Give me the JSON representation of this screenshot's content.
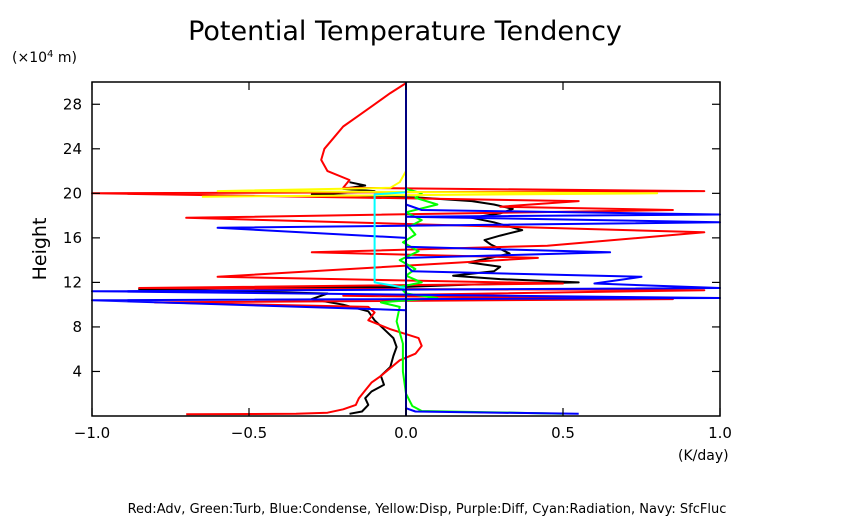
{
  "chart_data": {
    "type": "line",
    "title": "Potential Temperature Tendency",
    "xlabel": "",
    "x_unit": "(K/day)",
    "ylabel": "Height",
    "y_unit_prefix": "(×10",
    "y_unit_exp": "4",
    "y_unit_suffix": " m)",
    "xlim": [
      -1.0,
      1.0
    ],
    "ylim": [
      0,
      30
    ],
    "x_ticks": [
      -1.0,
      -0.5,
      0.0,
      0.5,
      1.0
    ],
    "x_tick_labels": [
      "−1.0",
      "−0.5",
      "0.0",
      "0.5",
      "1.0"
    ],
    "y_ticks": [
      4,
      8,
      12,
      16,
      20,
      24,
      28
    ],
    "y_tick_labels": [
      "4",
      "8",
      "12",
      "16",
      "20",
      "24",
      "28"
    ],
    "legend_text": "Red:Adv, Green:Turb, Blue:Condense, Yellow:Disp, Purple:Diff, Cyan:Radiation, Navy: SfcFluc",
    "series": [
      {
        "color": "#000000",
        "points": [
          [
            -0.18,
            0.2
          ],
          [
            -0.14,
            0.4
          ],
          [
            -0.12,
            1.0
          ],
          [
            -0.13,
            1.6
          ],
          [
            -0.11,
            2.2
          ],
          [
            -0.07,
            2.8
          ],
          [
            -0.08,
            3.6
          ],
          [
            -0.05,
            4.4
          ],
          [
            -0.04,
            5.4
          ],
          [
            -0.03,
            6.2
          ],
          [
            -0.04,
            7.0
          ],
          [
            -0.07,
            7.8
          ],
          [
            -0.1,
            8.6
          ],
          [
            -0.12,
            9.4
          ],
          [
            -0.2,
            10.0
          ],
          [
            -0.3,
            10.5
          ],
          [
            -0.25,
            11.0
          ],
          [
            -0.85,
            11.4
          ],
          [
            0.0,
            11.6
          ],
          [
            0.2,
            11.8
          ],
          [
            0.55,
            12.0
          ],
          [
            0.3,
            12.3
          ],
          [
            0.15,
            12.6
          ],
          [
            0.28,
            13.0
          ],
          [
            0.3,
            13.4
          ],
          [
            0.2,
            13.8
          ],
          [
            0.27,
            14.2
          ],
          [
            0.33,
            14.6
          ],
          [
            0.3,
            15.0
          ],
          [
            0.27,
            15.4
          ],
          [
            0.25,
            15.8
          ],
          [
            0.3,
            16.2
          ],
          [
            0.37,
            16.7
          ],
          [
            0.33,
            17.0
          ],
          [
            0.28,
            17.4
          ],
          [
            0.21,
            17.8
          ],
          [
            0.3,
            18.2
          ],
          [
            0.34,
            18.6
          ],
          [
            0.28,
            19.0
          ],
          [
            0.21,
            19.3
          ],
          [
            0.05,
            19.6
          ],
          [
            -0.3,
            19.9
          ],
          [
            -0.1,
            20.2
          ],
          [
            -0.2,
            20.4
          ],
          [
            -0.13,
            20.7
          ],
          [
            -0.18,
            21.0
          ]
        ]
      },
      {
        "color": "#ff0000",
        "points": [
          [
            -0.7,
            0.15
          ],
          [
            -0.35,
            0.2
          ],
          [
            -0.25,
            0.3
          ],
          [
            -0.2,
            0.6
          ],
          [
            -0.16,
            1.0
          ],
          [
            -0.15,
            1.6
          ],
          [
            -0.13,
            2.3
          ],
          [
            -0.11,
            3.0
          ],
          [
            -0.08,
            3.6
          ],
          [
            -0.05,
            4.3
          ],
          [
            -0.02,
            5.0
          ],
          [
            0.03,
            5.6
          ],
          [
            0.05,
            6.3
          ],
          [
            0.04,
            7.0
          ],
          [
            -0.05,
            7.8
          ],
          [
            -0.12,
            8.6
          ],
          [
            -0.1,
            9.3
          ],
          [
            -0.12,
            9.8
          ],
          [
            -0.8,
            10.2
          ],
          [
            0.85,
            10.5
          ],
          [
            -0.2,
            10.8
          ],
          [
            0.95,
            11.3
          ],
          [
            -0.85,
            11.5
          ],
          [
            0.5,
            11.9
          ],
          [
            -0.6,
            12.5
          ],
          [
            0.42,
            14.2
          ],
          [
            -0.3,
            14.7
          ],
          [
            0.45,
            15.3
          ],
          [
            0.95,
            16.5
          ],
          [
            -0.7,
            17.8
          ],
          [
            0.85,
            18.5
          ],
          [
            0.3,
            18.8
          ],
          [
            0.55,
            19.3
          ],
          [
            -1.0,
            20.0
          ],
          [
            0.95,
            20.2
          ],
          [
            -0.2,
            20.5
          ],
          [
            -0.18,
            21.2
          ],
          [
            -0.25,
            22.0
          ],
          [
            -0.27,
            23.0
          ],
          [
            -0.26,
            24.0
          ],
          [
            -0.23,
            25.0
          ],
          [
            -0.2,
            26.0
          ],
          [
            -0.15,
            27.0
          ],
          [
            -0.1,
            28.0
          ],
          [
            -0.05,
            29.0
          ],
          [
            0.0,
            29.9
          ]
        ]
      },
      {
        "color": "#00ff00",
        "points": [
          [
            0.5,
            0.2
          ],
          [
            0.35,
            0.3
          ],
          [
            0.05,
            0.45
          ],
          [
            0.02,
            0.9
          ],
          [
            0.0,
            2.0
          ],
          [
            -0.01,
            4.0
          ],
          [
            -0.01,
            6.5
          ],
          [
            -0.03,
            8.5
          ],
          [
            -0.02,
            9.8
          ],
          [
            -0.08,
            10.2
          ],
          [
            0.1,
            10.6
          ],
          [
            0.0,
            11.0
          ],
          [
            -0.02,
            11.6
          ],
          [
            0.05,
            12.0
          ],
          [
            0.0,
            12.6
          ],
          [
            0.03,
            13.2
          ],
          [
            -0.02,
            14.0
          ],
          [
            0.04,
            14.8
          ],
          [
            -0.01,
            15.6
          ],
          [
            0.03,
            16.3
          ],
          [
            0.01,
            17.0
          ],
          [
            0.05,
            17.6
          ],
          [
            0.0,
            18.3
          ],
          [
            0.1,
            19.0
          ],
          [
            0.03,
            19.6
          ],
          [
            0.05,
            20.0
          ],
          [
            0.0,
            20.4
          ],
          [
            0.0,
            21.0
          ]
        ]
      },
      {
        "color": "#0000ff",
        "points": [
          [
            0.55,
            0.2
          ],
          [
            0.03,
            0.4
          ],
          [
            0.0,
            0.7
          ],
          [
            0.0,
            9.5
          ],
          [
            -1.0,
            10.4
          ],
          [
            1.0,
            10.6
          ],
          [
            -1.0,
            11.2
          ],
          [
            1.0,
            11.5
          ],
          [
            0.6,
            11.9
          ],
          [
            0.75,
            12.5
          ],
          [
            0.02,
            13.0
          ],
          [
            0.0,
            13.5
          ],
          [
            0.0,
            14.2
          ],
          [
            0.65,
            14.7
          ],
          [
            0.0,
            15.2
          ],
          [
            0.0,
            16.0
          ],
          [
            -0.6,
            16.9
          ],
          [
            1.0,
            17.4
          ],
          [
            0.0,
            17.9
          ],
          [
            1.0,
            18.1
          ],
          [
            0.05,
            18.5
          ],
          [
            0.0,
            19.0
          ],
          [
            0.0,
            29.9
          ]
        ]
      },
      {
        "color": "#ffff00",
        "points": [
          [
            -0.65,
            19.7
          ],
          [
            0.8,
            20.0
          ],
          [
            -0.6,
            20.2
          ],
          [
            -0.05,
            20.5
          ],
          [
            -0.02,
            21.0
          ],
          [
            0.0,
            22.0
          ]
        ]
      },
      {
        "color": "#00ffff",
        "points": [
          [
            0.0,
            11.5
          ],
          [
            -0.1,
            12.0
          ],
          [
            -0.1,
            14.0
          ],
          [
            -0.1,
            16.0
          ],
          [
            -0.1,
            18.0
          ],
          [
            -0.1,
            19.9
          ],
          [
            0.0,
            20.1
          ]
        ]
      },
      {
        "color": "#000080",
        "points": [
          [
            0.0,
            0.0
          ],
          [
            0.0,
            30.0
          ]
        ]
      }
    ]
  }
}
